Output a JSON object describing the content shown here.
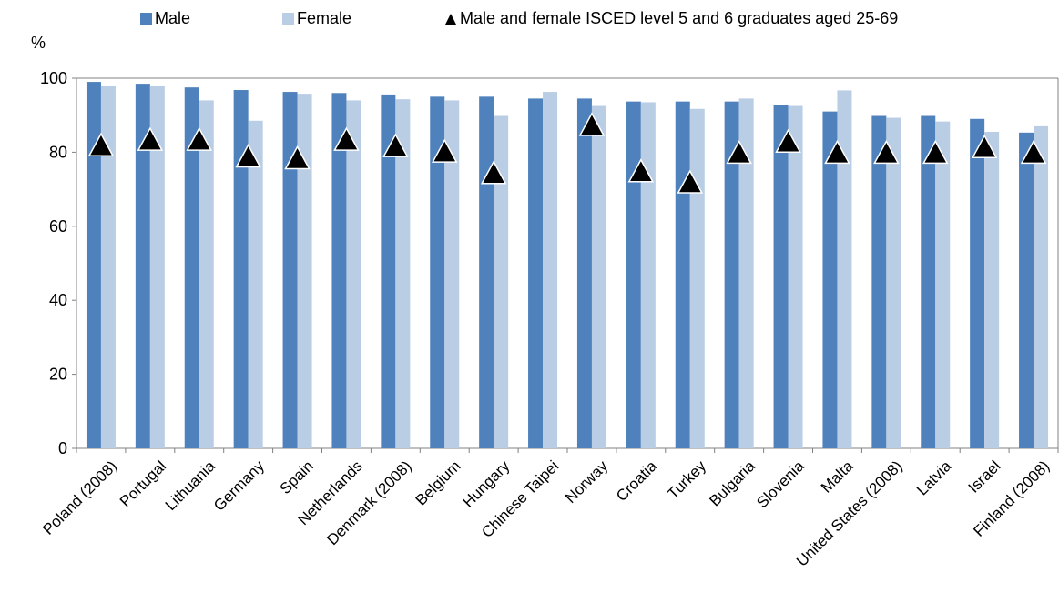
{
  "colors": {
    "male": "#4F81BD",
    "female": "#B9CDE5",
    "marker": "#000000",
    "axis": "#808080"
  },
  "legend": {
    "items": [
      {
        "label": "Male",
        "icon": "square",
        "color": "#4F81BD"
      },
      {
        "label": "Female",
        "icon": "square",
        "color": "#B9CDE5"
      },
      {
        "label": "Male and female  ISCED level 5 and 6 graduates aged 25-69",
        "icon": "triangle",
        "color": "#000000"
      }
    ]
  },
  "chart_data": {
    "type": "bar",
    "ylabel": "%",
    "ylim": [
      0,
      100
    ],
    "yticks": [
      0,
      20,
      40,
      60,
      80,
      100
    ],
    "grid": false,
    "legend_position": "top",
    "categories": [
      "Poland (2008)",
      "Portugal",
      "Lithuania",
      "Germany",
      "Spain",
      "Netherlands",
      "Denmark (2008)",
      "Belgium",
      "Hungary",
      "Chinese Taipei",
      "Norway",
      "Croatia",
      "Turkey",
      "Bulgaria",
      "Slovenia",
      "Malta",
      "United States (2008)",
      "Latvia",
      "Israel",
      "Finland (2008)"
    ],
    "series": [
      {
        "name": "Male",
        "type": "bar",
        "values": [
          99,
          98.5,
          97.5,
          96.8,
          96.3,
          96,
          95.6,
          95,
          95,
          94.5,
          94.5,
          93.7,
          93.7,
          93.7,
          92.7,
          91,
          89.8,
          89.8,
          89,
          85.3
        ]
      },
      {
        "name": "Female",
        "type": "bar",
        "values": [
          97.8,
          97.8,
          94,
          88.5,
          95.8,
          94,
          94.3,
          94,
          89.8,
          96.3,
          92.5,
          93.5,
          91.7,
          94.5,
          92.5,
          96.7,
          89.3,
          88.3,
          85.5,
          87
        ]
      },
      {
        "name": "Male and female  ISCED level 5 and 6 graduates aged 25-69",
        "type": "marker",
        "values": [
          82,
          83.5,
          83.5,
          79,
          78.5,
          83.5,
          81.8,
          80.3,
          74.5,
          null,
          87.5,
          75,
          72,
          80,
          83,
          80,
          80,
          80,
          81.5,
          80
        ]
      }
    ]
  }
}
